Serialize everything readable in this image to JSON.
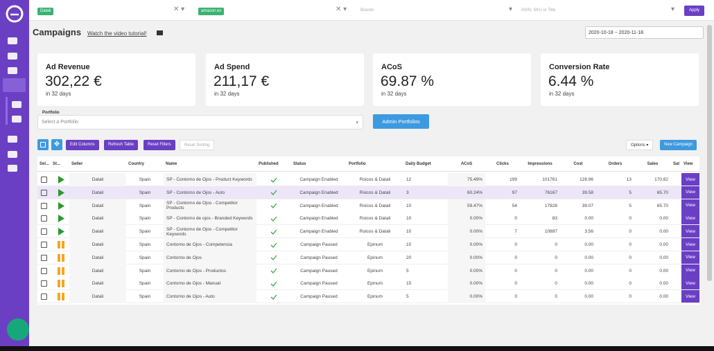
{
  "filters": {
    "chips": [
      "Datali",
      "amazon.es"
    ],
    "brands": "Brands",
    "search": "ASIN, SKU or Title",
    "apply": "Apply"
  },
  "header": {
    "title": "Campaigns",
    "tutorial": "Watch the video tutorial!",
    "date_range": "2020-10-18 ~ 2020-11-18"
  },
  "kpis": [
    {
      "label": "Ad Revenue",
      "value": "302,22 €",
      "sub": "in 32 days"
    },
    {
      "label": "Ad Spend",
      "value": "211,17 €",
      "sub": "in 32 days"
    },
    {
      "label": "ACoS",
      "value": "69.87 %",
      "sub": "in 32 days"
    },
    {
      "label": "Conversion Rate",
      "value": "6.44 %",
      "sub": "in 32 days"
    }
  ],
  "portfolio": {
    "label": "Portfolio",
    "placeholder": "Select a Portfolio",
    "button": "Admin Portfolios"
  },
  "toolbar": {
    "buttons": [
      "Edit Columns",
      "Refresh Table",
      "Reset Filters",
      "Reset Sorting"
    ],
    "options": "Options",
    "new": "New Campaign"
  },
  "table": {
    "columns": [
      "Sel...",
      "St...",
      "Seller",
      "Country",
      "Name",
      "Published",
      "Status",
      "Portfolio",
      "Daily Budget",
      "ACoS",
      "Clicks",
      "Impressions",
      "Cost",
      "Orders",
      "Sales",
      "Sal",
      "View"
    ],
    "rows": [
      {
        "icon": "play",
        "seller": "Datali",
        "country": "Spain",
        "name": "SP - Contorno de Ojos - Product Keywords",
        "status": "Campaign Enabled",
        "portfolio": "Roicos & Datali",
        "budget": "12",
        "acos": "75.49%",
        "clicks": "199",
        "impressions": "101761",
        "cost": "128.96",
        "orders": "13",
        "sales": "170.82",
        "view": "View"
      },
      {
        "icon": "play",
        "highlight": true,
        "seller": "Datali",
        "country": "Spain",
        "name": "SP - Contorno de Ojos - Auto",
        "status": "Campaign Enabled",
        "portfolio": "Roicos & Datali",
        "budget": "3",
        "acos": "60.24%",
        "clicks": "97",
        "impressions": "76167",
        "cost": "39.58",
        "orders": "5",
        "sales": "65.70",
        "view": "View"
      },
      {
        "icon": "play",
        "seller": "Datali",
        "country": "Spain",
        "name": "SP - Contorno de Ojos - Competitor Products",
        "status": "Campaign Enabled",
        "portfolio": "Roicos & Datali",
        "budget": "10",
        "acos": "59.47%",
        "clicks": "54",
        "impressions": "17828",
        "cost": "39.07",
        "orders": "5",
        "sales": "65.70",
        "view": "View"
      },
      {
        "icon": "play",
        "seller": "Datali",
        "country": "Spain",
        "name": "SP - Contorno de ojos - Branded Keywords",
        "status": "Campaign Enabled",
        "portfolio": "Roicos & Datali",
        "budget": "10",
        "acos": "0.00%",
        "clicks": "0",
        "impressions": "83",
        "cost": "0.00",
        "orders": "0",
        "sales": "0.00",
        "view": "View"
      },
      {
        "icon": "play",
        "seller": "Datali",
        "country": "Spain",
        "name": "SP - Contorno de Ojos - Competitor Keywords",
        "status": "Campaign Enabled",
        "portfolio": "Roicos & Datali",
        "budget": "10",
        "acos": "0.00%",
        "clicks": "7",
        "impressions": "10897",
        "cost": "3.56",
        "orders": "0",
        "sales": "0.00",
        "view": "View"
      },
      {
        "icon": "pause",
        "seller": "Datali",
        "country": "Spain",
        "name": "Contorno de Ojos - Competencia",
        "status": "Campaign Paused",
        "portfolio": "Epinum",
        "budget": "10",
        "acos": "0.00%",
        "clicks": "0",
        "impressions": "0",
        "cost": "0.00",
        "orders": "0",
        "sales": "0.00",
        "view": "View"
      },
      {
        "icon": "pause",
        "seller": "Datali",
        "country": "Spain",
        "name": "Contorno de Ojos",
        "status": "Campaign Paused",
        "portfolio": "Epinum",
        "budget": "20",
        "acos": "0.00%",
        "clicks": "0",
        "impressions": "0",
        "cost": "0.00",
        "orders": "0",
        "sales": "0.00",
        "view": "View"
      },
      {
        "icon": "pause",
        "seller": "Datali",
        "country": "Spain",
        "name": "Contorno de Ojos - Productos",
        "status": "Campaign Paused",
        "portfolio": "Epinum",
        "budget": "5",
        "acos": "0.00%",
        "clicks": "0",
        "impressions": "0",
        "cost": "0.00",
        "orders": "0",
        "sales": "0.00",
        "view": "View"
      },
      {
        "icon": "pause",
        "seller": "Datali",
        "country": "Spain",
        "name": "Contorno de Ojos - Manual",
        "status": "Campaign Paused",
        "portfolio": "Epinum",
        "budget": "15",
        "acos": "0.00%",
        "clicks": "0",
        "impressions": "0",
        "cost": "0.00",
        "orders": "0",
        "sales": "0.00",
        "view": "View"
      },
      {
        "icon": "pause",
        "seller": "Datali",
        "country": "Spain",
        "name": "Contorno de Ojos - Auto",
        "status": "Campaign Paused",
        "portfolio": "Epinum",
        "budget": "5",
        "acos": "0.00%",
        "clicks": "0",
        "impressions": "0",
        "cost": "0.00",
        "orders": "0",
        "sales": "0.00",
        "view": "View"
      }
    ]
  }
}
